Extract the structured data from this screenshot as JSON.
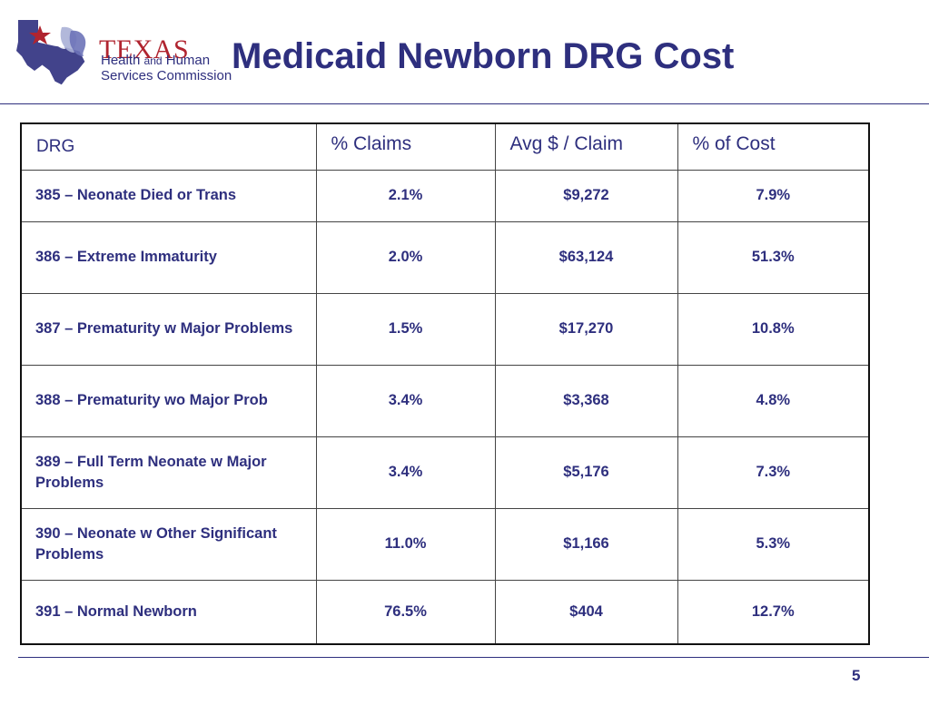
{
  "header": {
    "logo": {
      "wordmark": "TEXAS",
      "line1_a": "Health ",
      "line1_b": "and",
      "line1_c": " Human",
      "line2": "Services Commission"
    },
    "title": "Medicaid Newborn DRG Cost"
  },
  "table": {
    "columns": [
      "DRG",
      "% Claims",
      "Avg $ / Claim",
      "% of Cost"
    ],
    "rows": [
      {
        "drg": "385 – Neonate Died or Trans",
        "claims": "2.1%",
        "avg": "$9,272",
        "cost": "7.9%"
      },
      {
        "drg": "386 – Extreme Immaturity",
        "claims": "2.0%",
        "avg": "$63,124",
        "cost": "51.3%"
      },
      {
        "drg": "387 – Prematurity w Major Problems",
        "claims": "1.5%",
        "avg": "$17,270",
        "cost": "10.8%"
      },
      {
        "drg": "388 – Prematurity wo Major Prob",
        "claims": "3.4%",
        "avg": "$3,368",
        "cost": "4.8%"
      },
      {
        "drg": "389 – Full Term Neonate w Major Problems",
        "claims": "3.4%",
        "avg": "$5,176",
        "cost": "7.3%"
      },
      {
        "drg": "390 – Neonate w Other Significant Problems",
        "claims": "11.0%",
        "avg": "$1,166",
        "cost": "5.3%"
      },
      {
        "drg": "391 – Normal Newborn",
        "claims": "76.5%",
        "avg": "$404",
        "cost": "12.7%"
      }
    ]
  },
  "footer": {
    "page_number": "5"
  },
  "colors": {
    "navy": "#2e2f7e",
    "red": "#b0242f",
    "border": "#111111"
  }
}
